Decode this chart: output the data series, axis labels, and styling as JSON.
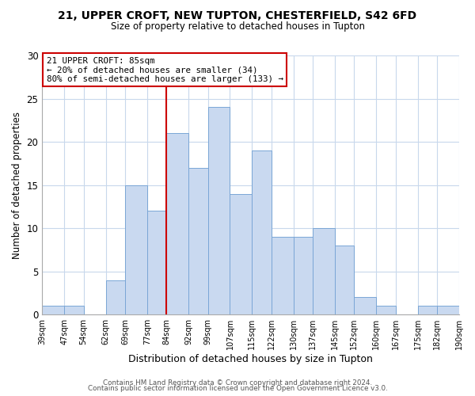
{
  "title": "21, UPPER CROFT, NEW TUPTON, CHESTERFIELD, S42 6FD",
  "subtitle": "Size of property relative to detached houses in Tupton",
  "xlabel": "Distribution of detached houses by size in Tupton",
  "ylabel": "Number of detached properties",
  "bin_edges": [
    39,
    47,
    54,
    62,
    69,
    77,
    84,
    92,
    99,
    107,
    115,
    122,
    130,
    137,
    145,
    152,
    160,
    167,
    175,
    182,
    190
  ],
  "counts": [
    1,
    1,
    0,
    4,
    15,
    12,
    21,
    17,
    24,
    14,
    19,
    9,
    9,
    10,
    8,
    2,
    1,
    0,
    1,
    1
  ],
  "bar_color": "#c9d9f0",
  "bar_edgecolor": "#7aa6d6",
  "vline_x": 84,
  "vline_color": "#cc0000",
  "annotation_title": "21 UPPER CROFT: 85sqm",
  "annotation_line1": "← 20% of detached houses are smaller (34)",
  "annotation_line2": "80% of semi-detached houses are larger (133) →",
  "annotation_box_edgecolor": "#cc0000",
  "ylim": [
    0,
    30
  ],
  "yticks": [
    0,
    5,
    10,
    15,
    20,
    25,
    30
  ],
  "tick_labels": [
    "39sqm",
    "47sqm",
    "54sqm",
    "62sqm",
    "69sqm",
    "77sqm",
    "84sqm",
    "92sqm",
    "99sqm",
    "107sqm",
    "115sqm",
    "122sqm",
    "130sqm",
    "137sqm",
    "145sqm",
    "152sqm",
    "160sqm",
    "167sqm",
    "175sqm",
    "182sqm",
    "190sqm"
  ],
  "footer1": "Contains HM Land Registry data © Crown copyright and database right 2024.",
  "footer2": "Contains public sector information licensed under the Open Government Licence v3.0.",
  "background_color": "#ffffff",
  "grid_color": "#c8d8ec"
}
